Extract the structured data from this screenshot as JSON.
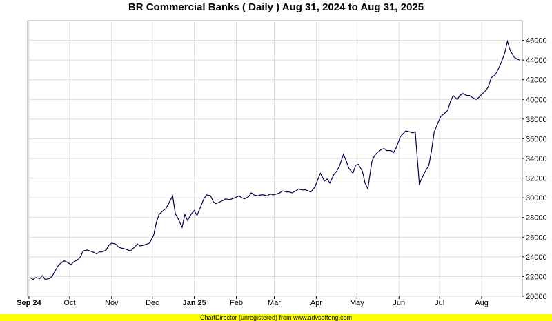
{
  "chart_data": {
    "type": "line",
    "title": "BR Commercial Banks ( Daily ) Aug 31, 2024 to Aug 31, 2025",
    "xlabel": "",
    "ylabel": "",
    "x_ticks": [
      "Sep 24",
      "Oct",
      "Nov",
      "Dec",
      "Jan 25",
      "Feb",
      "Mar",
      "Apr",
      "May",
      "Jun",
      "Jul",
      "Aug"
    ],
    "y_ticks": [
      20000,
      22000,
      24000,
      26000,
      28000,
      30000,
      32000,
      34000,
      36000,
      38000,
      40000,
      42000,
      44000,
      46000
    ],
    "ylim": [
      20000,
      48000
    ],
    "xlim": [
      "2024-08-31",
      "2025-08-31"
    ],
    "grid": true,
    "line_color": "#000050",
    "series": [
      {
        "x": [
          "2024-09-02",
          "2024-09-04",
          "2024-09-06",
          "2024-09-09",
          "2024-09-11",
          "2024-09-13",
          "2024-09-16",
          "2024-09-18",
          "2024-09-20",
          "2024-09-23",
          "2024-09-25",
          "2024-09-27",
          "2024-09-30",
          "2024-10-02",
          "2024-10-04",
          "2024-10-07",
          "2024-10-09",
          "2024-10-11",
          "2024-10-14",
          "2024-10-16",
          "2024-10-18",
          "2024-10-21",
          "2024-10-23",
          "2024-10-25",
          "2024-10-28",
          "2024-10-30",
          "2024-11-01",
          "2024-11-04",
          "2024-11-06",
          "2024-11-08",
          "2024-11-11",
          "2024-11-13",
          "2024-11-15",
          "2024-11-18",
          "2024-11-20",
          "2024-11-22",
          "2024-11-25",
          "2024-11-27",
          "2024-11-29",
          "2024-12-02",
          "2024-12-04",
          "2024-12-06",
          "2024-12-09",
          "2024-12-11",
          "2024-12-13",
          "2024-12-16",
          "2024-12-18",
          "2024-12-20",
          "2024-12-23",
          "2024-12-25",
          "2024-12-27",
          "2024-12-30",
          "2025-01-01",
          "2025-01-03",
          "2025-01-06",
          "2025-01-08",
          "2025-01-10",
          "2025-01-13",
          "2025-01-15",
          "2025-01-17",
          "2025-01-20",
          "2025-01-22",
          "2025-01-24",
          "2025-01-27",
          "2025-01-29",
          "2025-01-31",
          "2025-02-03",
          "2025-02-05",
          "2025-02-07",
          "2025-02-10",
          "2025-02-12",
          "2025-02-14",
          "2025-02-17",
          "2025-02-19",
          "2025-02-21",
          "2025-02-24",
          "2025-02-26",
          "2025-02-28",
          "2025-03-03",
          "2025-03-05",
          "2025-03-07",
          "2025-03-10",
          "2025-03-12",
          "2025-03-14",
          "2025-03-17",
          "2025-03-19",
          "2025-03-21",
          "2025-03-24",
          "2025-03-26",
          "2025-03-28",
          "2025-03-31",
          "2025-04-02",
          "2025-04-04",
          "2025-04-07",
          "2025-04-09",
          "2025-04-11",
          "2025-04-14",
          "2025-04-16",
          "2025-04-18",
          "2025-04-21",
          "2025-04-23",
          "2025-04-25",
          "2025-04-28",
          "2025-04-30",
          "2025-05-02",
          "2025-05-05",
          "2025-05-07",
          "2025-05-09",
          "2025-05-12",
          "2025-05-14",
          "2025-05-16",
          "2025-05-19",
          "2025-05-21",
          "2025-05-23",
          "2025-05-26",
          "2025-05-28",
          "2025-05-30",
          "2025-06-02",
          "2025-06-04",
          "2025-06-06",
          "2025-06-09",
          "2025-06-11",
          "2025-06-13",
          "2025-06-16",
          "2025-06-18",
          "2025-06-20",
          "2025-06-23",
          "2025-06-25",
          "2025-06-27",
          "2025-06-30",
          "2025-07-02",
          "2025-07-04",
          "2025-07-07",
          "2025-07-09",
          "2025-07-11",
          "2025-07-14",
          "2025-07-16",
          "2025-07-18",
          "2025-07-21",
          "2025-07-23",
          "2025-07-25",
          "2025-07-28",
          "2025-07-30",
          "2025-08-01",
          "2025-08-04",
          "2025-08-06",
          "2025-08-08",
          "2025-08-11",
          "2025-08-13",
          "2025-08-15",
          "2025-08-18",
          "2025-08-20",
          "2025-08-22",
          "2025-08-25",
          "2025-08-27",
          "2025-08-29"
        ],
        "values": [
          21900,
          21700,
          21900,
          21800,
          22100,
          21700,
          21800,
          22000,
          22500,
          23200,
          23400,
          23600,
          23400,
          23200,
          23500,
          23700,
          24000,
          24600,
          24700,
          24600,
          24500,
          24300,
          24500,
          24500,
          24700,
          25200,
          25400,
          25300,
          25000,
          24900,
          24800,
          24700,
          24600,
          25000,
          25300,
          25100,
          25200,
          25300,
          25400,
          26200,
          27500,
          28300,
          28700,
          28900,
          29400,
          30200,
          28400,
          27900,
          27000,
          28300,
          27700,
          28400,
          28700,
          28200,
          29200,
          29900,
          30300,
          30200,
          29600,
          29400,
          29600,
          29700,
          29900,
          29800,
          29900,
          30000,
          30200,
          30000,
          29900,
          30100,
          30500,
          30300,
          30200,
          30300,
          30300,
          30200,
          30400,
          30300,
          30400,
          30500,
          30700,
          30600,
          30600,
          30500,
          30700,
          30900,
          30800,
          30800,
          30700,
          30600,
          31100,
          31800,
          32500,
          31700,
          31900,
          31500,
          32400,
          32700,
          33200,
          34400,
          33800,
          33000,
          32500,
          33300,
          33400,
          32700,
          31500,
          30900,
          33700,
          34300,
          34600,
          34900,
          35000,
          34800,
          34800,
          34600,
          35100,
          36200,
          36500,
          36800,
          36700,
          36600,
          36700,
          31400,
          32000,
          32600,
          33300,
          34800,
          36700,
          37700,
          38300,
          38500,
          38900,
          39800,
          40400,
          40000,
          40400,
          40600,
          40400,
          40400,
          40200,
          40000,
          40200,
          40500,
          40900,
          41300,
          42200,
          42500,
          43000,
          43600,
          44700,
          45900,
          45000,
          44300,
          44100,
          44000
        ]
      }
    ],
    "footer": "ChartDirector (unregistered) from www.advsofteng.com"
  }
}
